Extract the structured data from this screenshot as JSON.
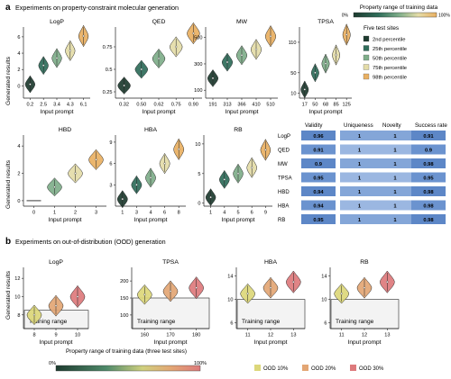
{
  "panel_a": {
    "letter": "a",
    "title": "Experiments on property-constraint molecular generation",
    "ylabel": "Generated results",
    "xlabel": "Input prompt",
    "legend_title": "Property range of training data",
    "legend_min": "0%",
    "legend_max": "100%",
    "sites_title": "Five test sites",
    "sites": [
      {
        "label": "2nd percentile",
        "color": "#1d3b2f"
      },
      {
        "label": "25th percentile",
        "color": "#2f6d5a"
      },
      {
        "label": "50th percentile",
        "color": "#7fae8a"
      },
      {
        "label": "75th percentile",
        "color": "#e4dca8"
      },
      {
        "label": "98th percentile",
        "color": "#e9b062"
      }
    ],
    "table": {
      "headers": [
        "Validity",
        "Uniqueness",
        "Novelty",
        "Success rate"
      ],
      "rows": [
        {
          "name": "LogP",
          "values": [
            "0.96",
            "1",
            "1",
            "0.91"
          ]
        },
        {
          "name": "QED",
          "values": [
            "0.91",
            "1",
            "1",
            "0.9"
          ]
        },
        {
          "name": "MW",
          "values": [
            "0.9",
            "1",
            "1",
            "0.98"
          ]
        },
        {
          "name": "TPSA",
          "values": [
            "0.95",
            "1",
            "1",
            "0.95"
          ]
        },
        {
          "name": "HBD",
          "values": [
            "0.94",
            "1",
            "1",
            "0.98"
          ]
        },
        {
          "name": "HBA",
          "values": [
            "0.94",
            "1",
            "1",
            "0.98"
          ]
        },
        {
          "name": "RB",
          "values": [
            "0.95",
            "1",
            "1",
            "0.98"
          ]
        }
      ]
    }
  },
  "panel_b": {
    "letter": "b",
    "title": "Experiments on out-of-distribution (OOD) generation",
    "ylabel": "Generated results",
    "xlabel": "Input prompt",
    "training_range_label": "Training range",
    "legend_title": "Property range of training data (three test sites)",
    "legend_min": "0%",
    "legend_max": "100%",
    "ood_legend": [
      {
        "label": "OOD 10%",
        "color": "#dcd77a"
      },
      {
        "label": "OOD 20%",
        "color": "#e3a674"
      },
      {
        "label": "OOD 30%",
        "color": "#dd7a7c"
      }
    ]
  },
  "chart_data": [
    {
      "type": "violin",
      "title": "LogP",
      "categories": [
        "0.2",
        "2.5",
        "3.4",
        "4.3",
        "6.1"
      ],
      "medians": [
        0.2,
        2.5,
        3.4,
        4.3,
        6.1
      ],
      "yticks": [
        0,
        2,
        4,
        6
      ],
      "ylim": [
        -1.5,
        7.2
      ]
    },
    {
      "type": "violin",
      "title": "QED",
      "categories": [
        "0.32",
        "0.50",
        "0.62",
        "0.75",
        "0.90"
      ],
      "medians": [
        0.32,
        0.5,
        0.62,
        0.75,
        0.9
      ],
      "yticks": [
        0.25,
        0.5,
        0.75
      ],
      "ylim": [
        0.18,
        0.97
      ]
    },
    {
      "type": "violin",
      "title": "MW",
      "categories": [
        "191",
        "313",
        "366",
        "410",
        "510"
      ],
      "medians": [
        191,
        313,
        366,
        410,
        510
      ],
      "yticks": [
        100,
        300,
        500
      ],
      "ylim": [
        40,
        580
      ]
    },
    {
      "type": "violin",
      "title": "TPSA",
      "categories": [
        "17",
        "50",
        "68",
        "85",
        "125"
      ],
      "medians": [
        17,
        50,
        68,
        85,
        125
      ],
      "yticks": [
        10,
        50,
        110
      ],
      "ylim": [
        0,
        140
      ]
    },
    {
      "type": "violin",
      "title": "HBD",
      "categories": [
        "0",
        "1",
        "2",
        "3"
      ],
      "medians": [
        0,
        1,
        2,
        3
      ],
      "yticks": [
        0,
        2,
        4
      ],
      "ylim": [
        -0.4,
        4.8
      ]
    },
    {
      "type": "violin",
      "title": "HBA",
      "categories": [
        "1",
        "3",
        "4",
        "6",
        "8"
      ],
      "medians": [
        1,
        3,
        4,
        6,
        8
      ],
      "yticks": [
        3,
        6,
        9
      ],
      "ylim": [
        0,
        10
      ]
    },
    {
      "type": "violin",
      "title": "RB",
      "categories": [
        "1",
        "4",
        "5",
        "6",
        "9"
      ],
      "medians": [
        1,
        4,
        5,
        6,
        9
      ],
      "yticks": [
        0,
        5,
        10
      ],
      "ylim": [
        -0.5,
        11.5
      ]
    },
    {
      "type": "violin",
      "title": "LogP",
      "categories": [
        "8",
        "9",
        "10"
      ],
      "medians": [
        8,
        9,
        10
      ],
      "yticks": [
        8,
        10,
        12
      ],
      "ylim": [
        6.5,
        13.2
      ],
      "training_max": 8.5
    },
    {
      "type": "violin",
      "title": "TPSA",
      "categories": [
        "160",
        "170",
        "180"
      ],
      "medians": [
        160,
        170,
        180
      ],
      "yticks": [
        100,
        150,
        200
      ],
      "ylim": [
        60,
        240
      ],
      "training_max": 150
    },
    {
      "type": "violin",
      "title": "HBA",
      "categories": [
        "11",
        "12",
        "13"
      ],
      "medians": [
        11,
        12,
        13
      ],
      "yticks": [
        6,
        10,
        14
      ],
      "ylim": [
        5,
        15.5
      ],
      "training_max": 10
    },
    {
      "type": "violin",
      "title": "RB",
      "categories": [
        "11",
        "12",
        "13"
      ],
      "medians": [
        11,
        12,
        13
      ],
      "yticks": [
        6,
        10,
        14
      ],
      "ylim": [
        5,
        15.5
      ],
      "training_max": 10
    }
  ]
}
